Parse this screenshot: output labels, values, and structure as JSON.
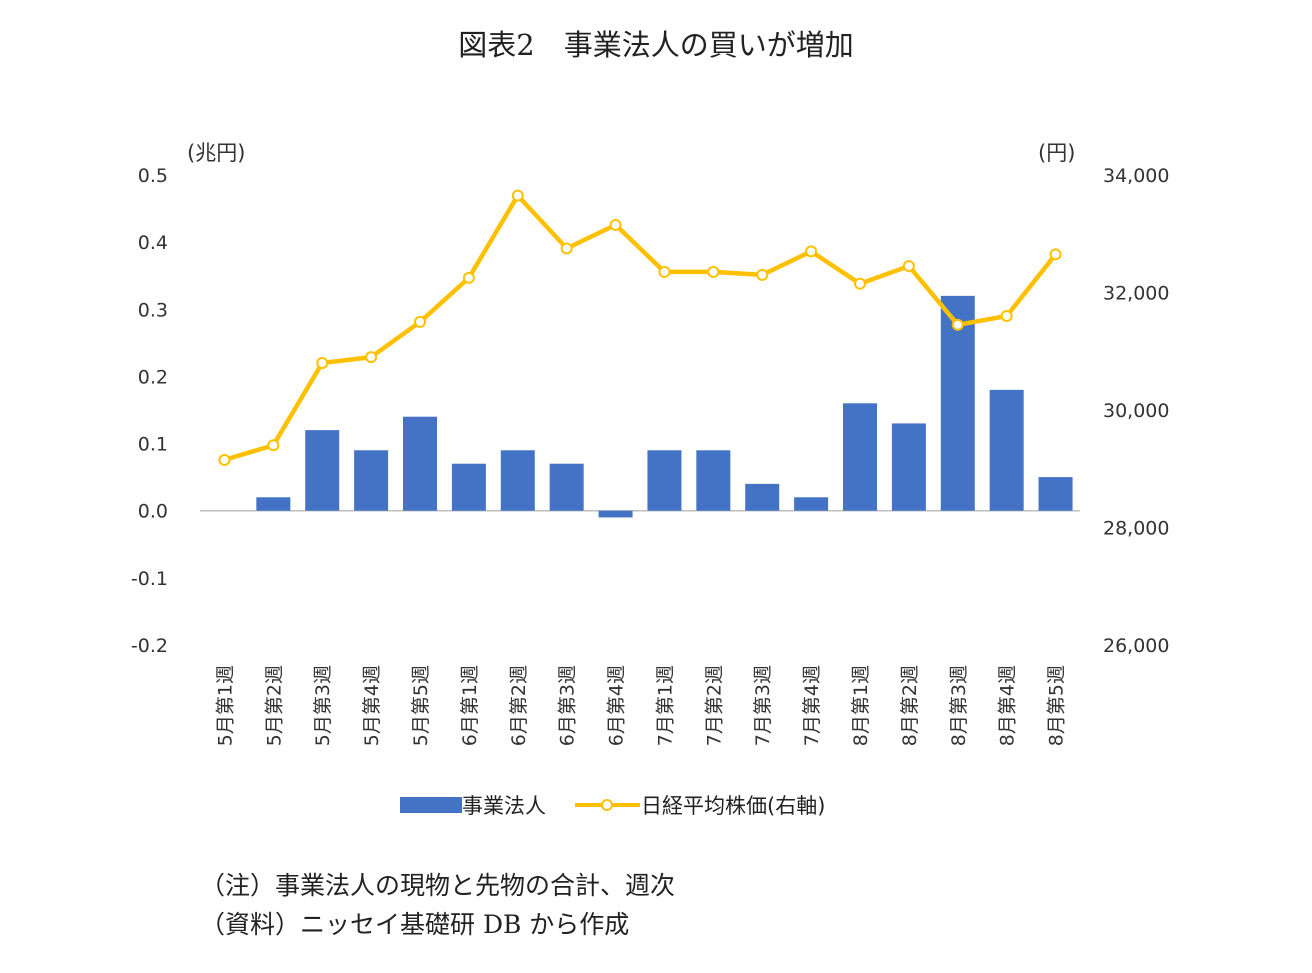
{
  "title": "図表2　事業法人の買いが増加",
  "notes": {
    "note1": "（注）事業法人の現物と先物の合計、週次",
    "note2": "（資料）ニッセイ基礎研 DB から作成"
  },
  "chart_data": {
    "type": "bar",
    "title": "図表2　事業法人の買いが増加",
    "categories": [
      "5月第1週",
      "5月第2週",
      "5月第3週",
      "5月第4週",
      "5月第5週",
      "6月第1週",
      "6月第2週",
      "6月第3週",
      "6月第4週",
      "7月第1週",
      "7月第2週",
      "7月第3週",
      "7月第4週",
      "8月第1週",
      "8月第2週",
      "8月第3週",
      "8月第4週",
      "8月第5週"
    ],
    "series": [
      {
        "name": "事業法人",
        "type": "bar",
        "axis": "left",
        "color": "#4472C4",
        "values": [
          0.0,
          0.02,
          0.12,
          0.09,
          0.14,
          0.07,
          0.09,
          0.07,
          -0.01,
          0.09,
          0.09,
          0.04,
          0.02,
          0.16,
          0.13,
          0.32,
          0.18,
          0.05
        ]
      },
      {
        "name": "日経平均株価(右軸)",
        "type": "line",
        "axis": "right",
        "color": "#FFC000",
        "values": [
          29150,
          29400,
          30800,
          30900,
          31500,
          32250,
          33650,
          32750,
          33150,
          32350,
          32350,
          32300,
          32700,
          32150,
          32450,
          31450,
          31600,
          32650
        ]
      }
    ],
    "y_left": {
      "unit_label": "(兆円)",
      "ylim": [
        -0.2,
        0.5
      ],
      "ticks": [
        -0.2,
        -0.1,
        0.0,
        0.1,
        0.2,
        0.3,
        0.4,
        0.5
      ],
      "tick_labels": [
        "-0.2",
        "-0.1",
        "0.0",
        "0.1",
        "0.2",
        "0.3",
        "0.4",
        "0.5"
      ]
    },
    "y_right": {
      "unit_label": "(円)",
      "ylim": [
        26000,
        34000
      ],
      "ticks": [
        26000,
        28000,
        30000,
        32000,
        34000
      ],
      "tick_labels": [
        "26,000",
        "28,000",
        "30,000",
        "32,000",
        "34,000"
      ]
    },
    "grid": false,
    "legend_position": "bottom"
  }
}
